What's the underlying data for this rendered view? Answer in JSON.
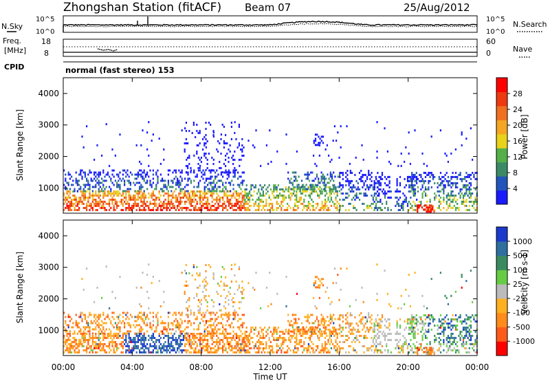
{
  "header": {
    "station": "Zhongshan Station (fitACF)",
    "beam": "Beam 07",
    "date": "25/Aug/2012"
  },
  "top_panel": {
    "left_label": "N.Sky",
    "left_ticks": [
      "10^5",
      "10^0"
    ],
    "right_label": "N.Search",
    "right_ticks": [
      "10^5",
      "10^0"
    ]
  },
  "freq_panel": {
    "left_label_1": "Freq.",
    "left_label_2": "[MHz]",
    "left_ticks": [
      "18",
      "8"
    ],
    "right_label": "Nave",
    "right_ticks": [
      "60",
      "0"
    ]
  },
  "cpid": {
    "label": "CPID",
    "mode": "normal (fast stereo) 153"
  },
  "colors": {
    "power": [
      "#1a1aff",
      "#2255bb",
      "#3b8a66",
      "#55b04a",
      "#e8d21a",
      "#f5a623",
      "#f07020",
      "#ee3a10",
      "#ff0000"
    ],
    "velocity": [
      "#ff0000",
      "#ff5a1a",
      "#ff8c1a",
      "#ffb020",
      "#bbbbbb",
      "#66cc44",
      "#3a8a60",
      "#2e6fa0",
      "#1a3acc"
    ]
  },
  "chart_data": [
    {
      "type": "heatmap",
      "name": "power",
      "ylabel": "Slant Range [km]",
      "yticks": [
        "1000",
        "2000",
        "3000",
        "4000"
      ],
      "ylim": [
        200,
        4500
      ],
      "colorbar_label": "Power [dB]",
      "colorbar_ticks": [
        "4",
        "8",
        "12",
        "16",
        "20",
        "24",
        "28"
      ],
      "colorbar_range": [
        0,
        30
      ]
    },
    {
      "type": "heatmap",
      "name": "velocity",
      "ylabel": "Slant Range [km]",
      "yticks": [
        "1000",
        "2000",
        "3000",
        "4000"
      ],
      "ylim": [
        200,
        4500
      ],
      "colorbar_label": "Velocity [m s-1]",
      "colorbar_ticks": [
        "1000",
        "500",
        "100",
        "25",
        "-25",
        "-100",
        "-500",
        "-1000"
      ],
      "xlabel": "Time UT",
      "xticks": [
        "00:00",
        "04:00",
        "08:00",
        "12:00",
        "16:00",
        "20:00",
        "00:00"
      ],
      "xlim_hours": [
        0,
        24
      ]
    }
  ]
}
